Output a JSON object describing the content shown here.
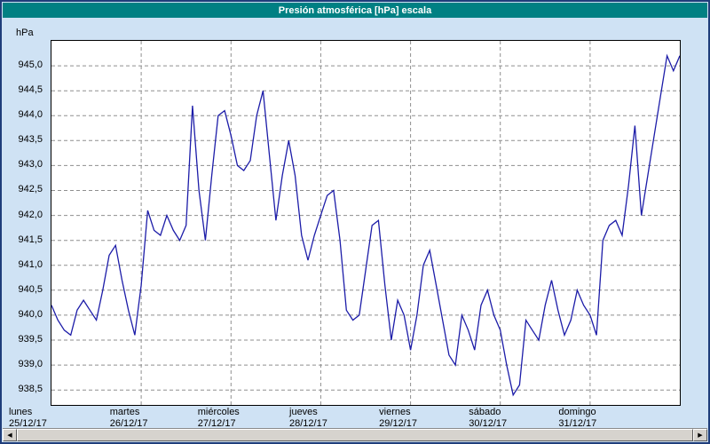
{
  "window_title": "Presión atmosférica [hPa] escala",
  "colors": {
    "titlebar": "#008083",
    "window_background": "#cfe2f4",
    "window_border": "#1f3d7a",
    "plot_background": "#ffffff",
    "plot_border": "#000000",
    "gridline": "#8f8f8f",
    "line": "#1c1ca8"
  },
  "scrollbar": {
    "left_arrow": "◀",
    "right_arrow": "▶"
  },
  "chart_data": {
    "type": "line",
    "title": "Presión atmosférica [hPa] escala",
    "xlabel": "",
    "ylabel": "hPa",
    "ylim": [
      938.2,
      945.5
    ],
    "x_days": 7,
    "grid": true,
    "legend": "none",
    "yticks": [
      {
        "v": 945.0,
        "label": "945,0"
      },
      {
        "v": 944.5,
        "label": "944,5"
      },
      {
        "v": 944.0,
        "label": "944,0"
      },
      {
        "v": 943.5,
        "label": "943,5"
      },
      {
        "v": 943.0,
        "label": "943,0"
      },
      {
        "v": 942.5,
        "label": "942,5"
      },
      {
        "v": 942.0,
        "label": "942,0"
      },
      {
        "v": 941.5,
        "label": "941,5"
      },
      {
        "v": 941.0,
        "label": "941,0"
      },
      {
        "v": 940.5,
        "label": "940,5"
      },
      {
        "v": 940.0,
        "label": "940,0"
      },
      {
        "v": 939.5,
        "label": "939,5"
      },
      {
        "v": 939.0,
        "label": "939,0"
      },
      {
        "v": 938.5,
        "label": "938,5"
      }
    ],
    "categories": [
      {
        "name": "lunes",
        "date": "25/12/17"
      },
      {
        "name": "martes",
        "date": "26/12/17"
      },
      {
        "name": "miércoles",
        "date": "27/12/17"
      },
      {
        "name": "jueves",
        "date": "28/12/17"
      },
      {
        "name": "viernes",
        "date": "29/12/17"
      },
      {
        "name": "sábado",
        "date": "30/12/17"
      },
      {
        "name": "domingo",
        "date": "31/12/17"
      }
    ],
    "series": [
      {
        "name": "Presión atmosférica [hPa]",
        "color": "#1c1ca8",
        "values": [
          940.2,
          939.9,
          939.7,
          939.6,
          940.1,
          940.3,
          940.1,
          939.9,
          940.5,
          941.2,
          941.4,
          940.7,
          940.1,
          939.6,
          940.6,
          942.1,
          941.7,
          941.6,
          942.0,
          941.7,
          941.5,
          941.8,
          944.2,
          942.5,
          941.5,
          942.8,
          944.0,
          944.1,
          943.6,
          943.0,
          942.9,
          943.1,
          944.0,
          944.5,
          943.2,
          941.9,
          942.8,
          943.5,
          942.8,
          941.6,
          941.1,
          941.6,
          942.0,
          942.4,
          942.5,
          941.5,
          940.1,
          939.9,
          940.0,
          940.9,
          941.8,
          941.9,
          940.6,
          939.5,
          940.3,
          940.0,
          939.3,
          940.0,
          941.0,
          941.3,
          940.6,
          939.9,
          939.2,
          939.0,
          940.0,
          939.7,
          939.3,
          940.2,
          940.5,
          940.0,
          939.7,
          939.0,
          938.4,
          938.6,
          939.9,
          939.7,
          939.5,
          940.2,
          940.7,
          940.1,
          939.6,
          939.9,
          940.5,
          940.2,
          940.0,
          939.6,
          941.5,
          941.8,
          941.9,
          941.6,
          942.6,
          943.8,
          942.0,
          942.8,
          943.6,
          944.4,
          945.2,
          944.9,
          945.2
        ]
      }
    ]
  }
}
